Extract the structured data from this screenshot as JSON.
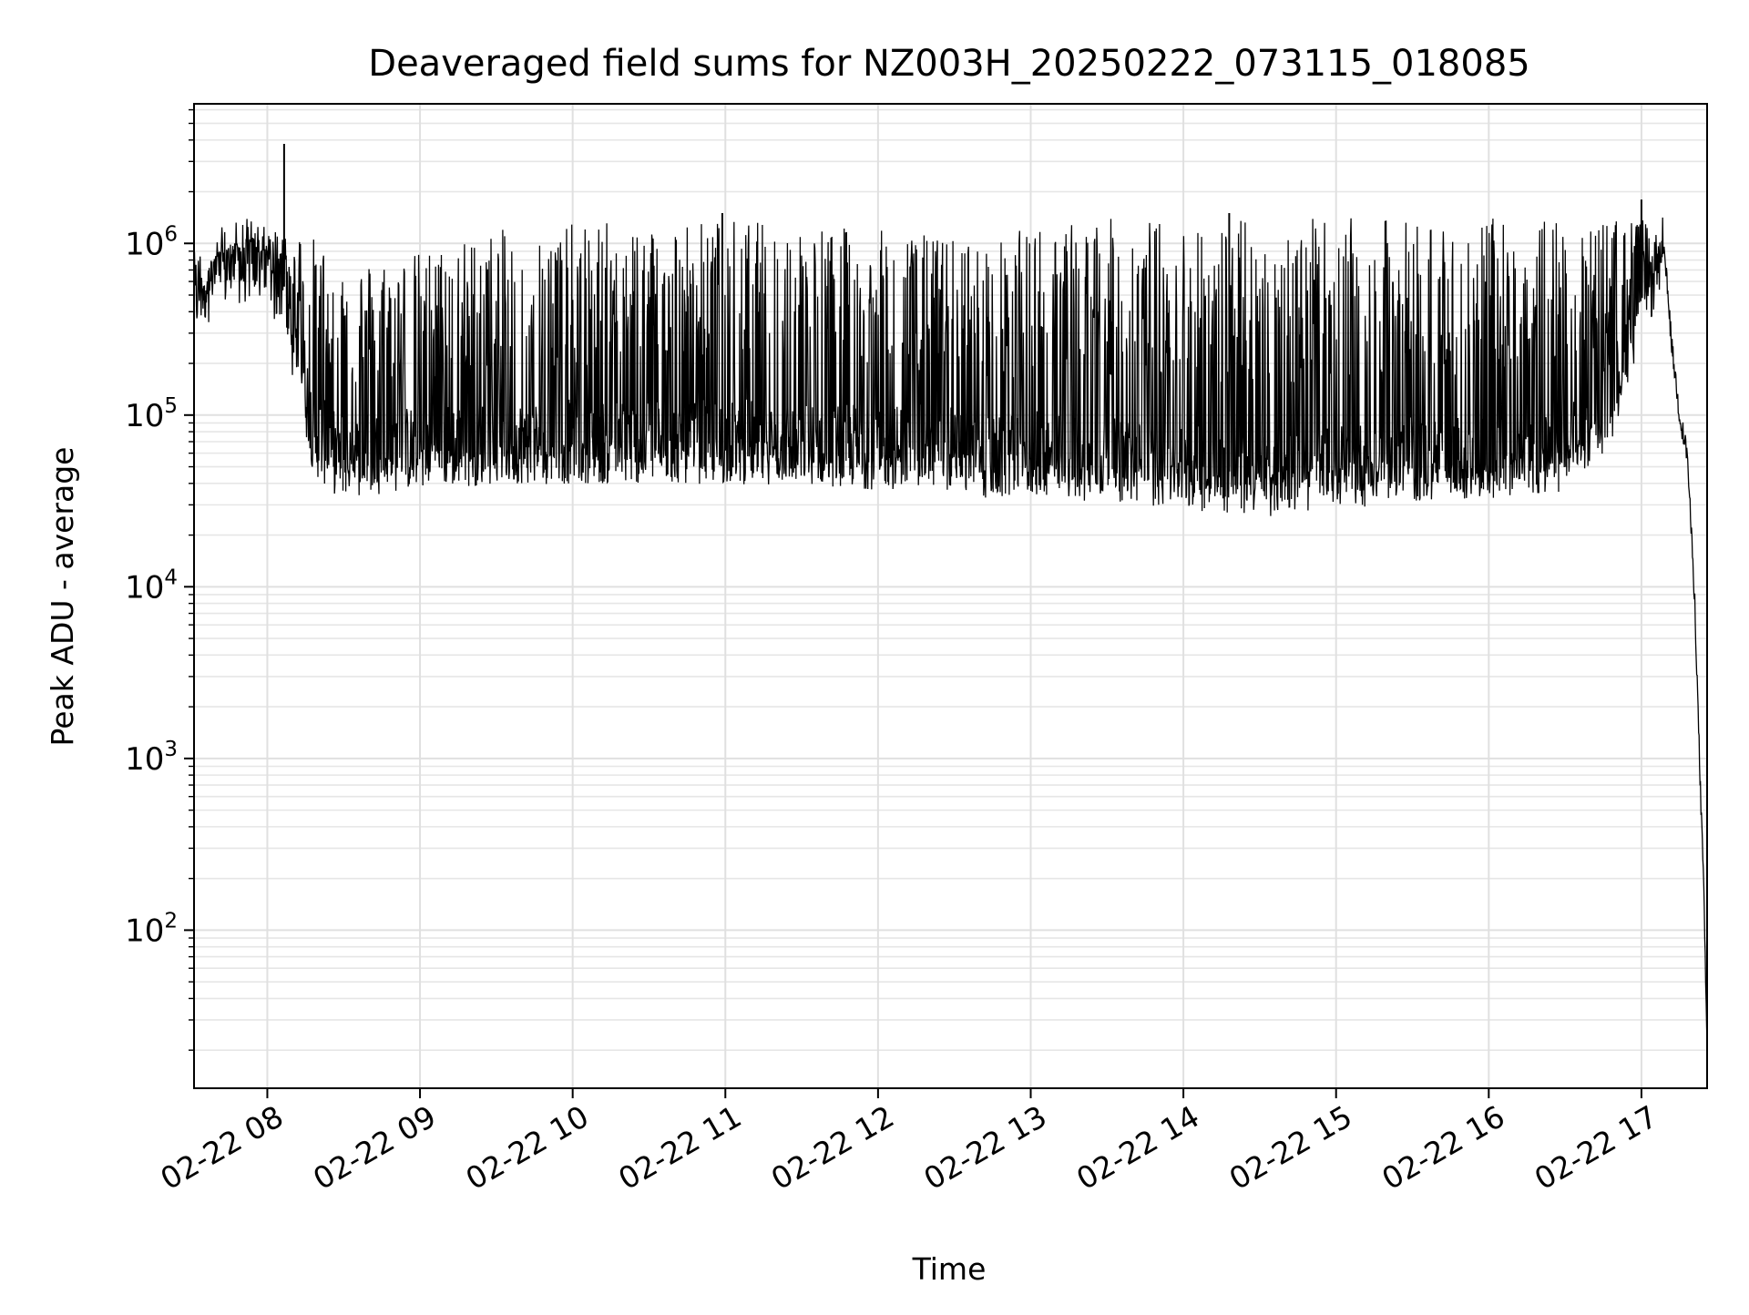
{
  "chart_data": {
    "type": "line",
    "title": "Deaveraged field sums for NZ003H_20250222_073115_018085",
    "xlabel": "Time",
    "ylabel": "Peak ADU - average",
    "yscale": "log",
    "grid": true,
    "legend": "none",
    "x_range": [
      "2025-02-22 07:31:15",
      "2025-02-22 17:25:00"
    ],
    "xlim_hours": [
      7.52,
      17.43
    ],
    "ylim": [
      12,
      6500000
    ],
    "x_ticks": [
      {
        "hour": 8,
        "label": "02-22 08"
      },
      {
        "hour": 9,
        "label": "02-22 09"
      },
      {
        "hour": 10,
        "label": "02-22 10"
      },
      {
        "hour": 11,
        "label": "02-22 11"
      },
      {
        "hour": 12,
        "label": "02-22 12"
      },
      {
        "hour": 13,
        "label": "02-22 13"
      },
      {
        "hour": 14,
        "label": "02-22 14"
      },
      {
        "hour": 15,
        "label": "02-22 15"
      },
      {
        "hour": 16,
        "label": "02-22 16"
      },
      {
        "hour": 17,
        "label": "02-22 17"
      }
    ],
    "y_ticks": [
      {
        "value": 100,
        "base": "10",
        "exp": "2"
      },
      {
        "value": 1000,
        "base": "10",
        "exp": "3"
      },
      {
        "value": 10000,
        "base": "10",
        "exp": "4"
      },
      {
        "value": 100000,
        "base": "10",
        "exp": "5"
      },
      {
        "value": 1000000,
        "base": "10",
        "exp": "6"
      }
    ],
    "series": [
      {
        "color": "#000000",
        "envelope_x_hours": [
          7.52,
          7.6,
          7.75,
          7.9,
          8.0,
          8.1,
          8.2,
          8.3,
          8.45,
          8.6,
          9.0,
          9.5,
          10.0,
          10.5,
          11.0,
          11.5,
          12.0,
          12.5,
          12.75,
          13.0,
          13.5,
          14.0,
          14.5,
          15.0,
          15.5,
          16.0,
          16.5,
          16.8,
          17.0,
          17.15,
          17.2,
          17.25,
          17.3,
          17.35,
          17.38,
          17.41,
          17.43
        ],
        "upper": [
          550000,
          800000,
          1000000,
          1100000,
          1100000,
          1200000,
          1200000,
          1100000,
          900000,
          800000,
          900000,
          1200000,
          1300000,
          1400000,
          1400000,
          1300000,
          1200000,
          1100000,
          1000000,
          1300000,
          1400000,
          1400000,
          1400000,
          1400000,
          1400000,
          1400000,
          1400000,
          1400000,
          1400000,
          1000000,
          400000,
          150000,
          80000,
          20000,
          4000,
          200,
          150
        ],
        "baseline": [
          500000,
          600000,
          750000,
          800000,
          750000,
          600000,
          300000,
          80000,
          60000,
          60000,
          65000,
          70000,
          70000,
          70000,
          70000,
          70000,
          65000,
          65000,
          55000,
          60000,
          55000,
          50000,
          45000,
          50000,
          55000,
          55000,
          60000,
          120000,
          500000,
          900000,
          250000,
          100000,
          60000,
          8000,
          1000,
          150,
          20
        ],
        "lower": [
          450000,
          500000,
          550000,
          500000,
          400000,
          300000,
          120000,
          50000,
          40000,
          40000,
          40000,
          40000,
          40000,
          40000,
          40000,
          40000,
          40000,
          38000,
          32000,
          35000,
          35000,
          35000,
          30000,
          35000,
          35000,
          35000,
          40000,
          80000,
          400000,
          800000,
          200000,
          80000,
          50000,
          5000,
          500,
          80,
          20
        ],
        "spikes": [
          {
            "x": 8.11,
            "y": 3800000
          },
          {
            "x": 17.0,
            "y": 1800000
          },
          {
            "x": 14.3,
            "y": 1500000
          },
          {
            "x": 10.98,
            "y": 1500000
          }
        ]
      }
    ]
  }
}
